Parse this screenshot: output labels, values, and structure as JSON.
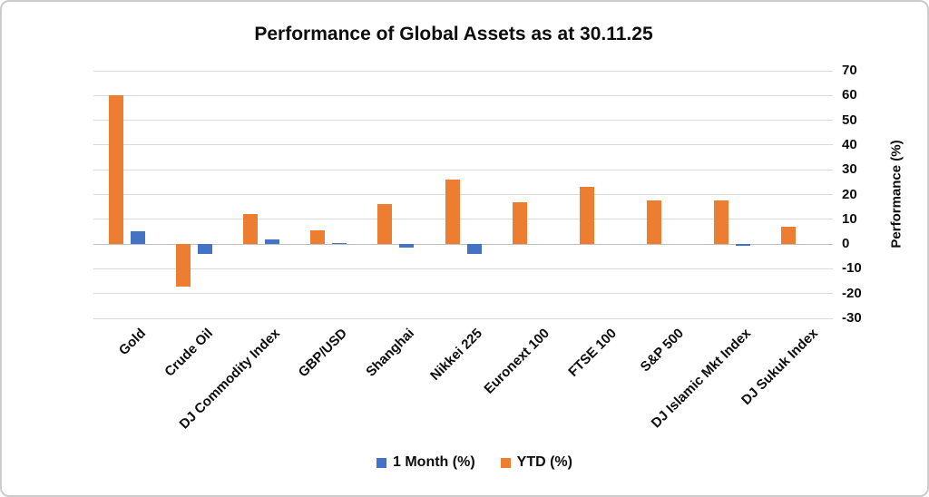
{
  "chart_data": {
    "type": "bar",
    "title": "Performance of Global Assets as at 30.11.25",
    "ylabel": "Performance (%)",
    "ylim": [
      -30,
      70
    ],
    "ytick_step": 10,
    "grid": true,
    "y_axis_side": "right",
    "legend_position": "bottom",
    "categories": [
      "Gold",
      "Crude Oil",
      "DJ Commodity Index",
      "GBP/USD",
      "Shanghai",
      "Nikkei 225",
      "Euronext 100",
      "FTSE 100",
      "S&P 500",
      "DJ Islamic Mkt Index",
      "DJ Sukuk Index"
    ],
    "series": [
      {
        "name": "1 Month (%)",
        "color": "#4472C4",
        "values": [
          5,
          -4,
          2,
          0.5,
          -1.5,
          -4,
          0,
          0,
          0,
          -0.5,
          0
        ]
      },
      {
        "name": "YTD (%)",
        "color": "#ED7D31",
        "values": [
          60,
          -17,
          12,
          5.5,
          16,
          26,
          17,
          23,
          17.5,
          17.5,
          7
        ]
      }
    ],
    "bar_order_left_to_right": [
      "YTD (%)",
      "1 Month (%)"
    ]
  }
}
